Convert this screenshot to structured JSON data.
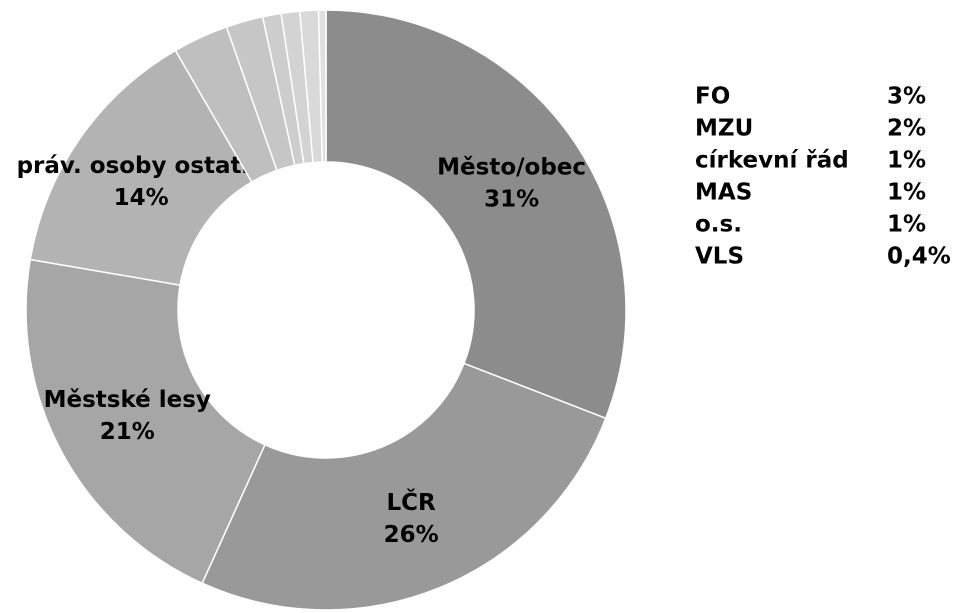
{
  "chart_data": {
    "type": "donut",
    "categories": [
      "Město/obec",
      "LČR",
      "Městské lesy",
      "práv. osoby ostatní",
      "FO",
      "MZU",
      "církevní řád",
      "MAS",
      "o.s.",
      "VLS"
    ],
    "values": [
      31,
      26,
      21,
      14,
      3,
      2,
      1,
      1,
      1,
      0.4
    ],
    "value_labels": [
      "31%",
      "26%",
      "21%",
      "14%",
      "3%",
      "2%",
      "1%",
      "1%",
      "1%",
      "0,4%"
    ],
    "colors": [
      "#8c8c8c",
      "#999999",
      "#a6a6a6",
      "#b3b3b3",
      "#bfbfbf",
      "#c6c6c6",
      "#cdcdcd",
      "#d3d3d3",
      "#d9d9d9",
      "#e0e0e0"
    ]
  }
}
